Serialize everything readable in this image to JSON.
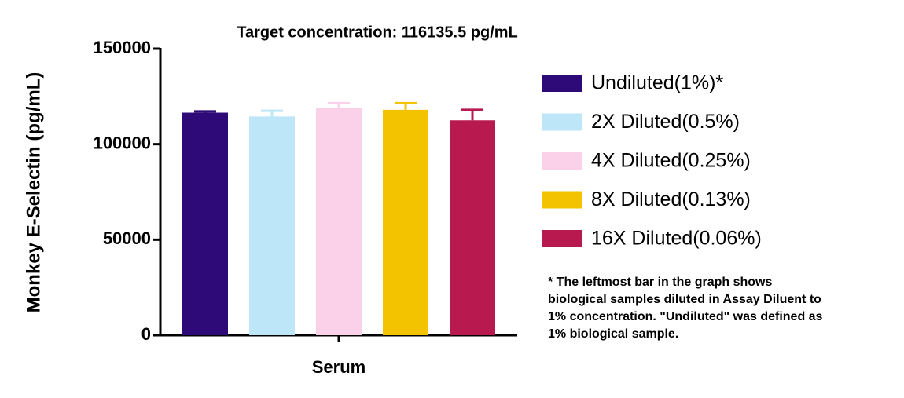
{
  "chart_data": {
    "type": "bar",
    "title": "Target concentration: 116135.5 pg/mL",
    "y_label": "Monkey E-Selectin (pg/mL)",
    "categories": [
      "Serum"
    ],
    "ylim": [
      0,
      150000
    ],
    "yticks": [
      0,
      50000,
      100000,
      150000
    ],
    "series": [
      {
        "name": "Undiluted(1%)*",
        "color": "#2e0a78",
        "values": [
          116500
        ],
        "errors": [
          700
        ]
      },
      {
        "name": "2X Diluted(0.5%)",
        "color": "#bde6f8",
        "values": [
          114500
        ],
        "errors": [
          3000
        ]
      },
      {
        "name": "4X Diluted(0.25%)",
        "color": "#fbd0e9",
        "values": [
          119000
        ],
        "errors": [
          2500
        ]
      },
      {
        "name": "8X Diluted(0.13%)",
        "color": "#f3c300",
        "values": [
          118000
        ],
        "errors": [
          3500
        ]
      },
      {
        "name": "16X Diluted(0.06%)",
        "color": "#b81a4f",
        "values": [
          112500
        ],
        "errors": [
          5500
        ]
      }
    ],
    "legend": "right",
    "note": [
      "* The leftmost bar in the graph shows",
      "biological samples diluted in Assay Diluent to",
      "1% concentration. \"Undiluted\" was defined as",
      "1% biological sample."
    ]
  }
}
